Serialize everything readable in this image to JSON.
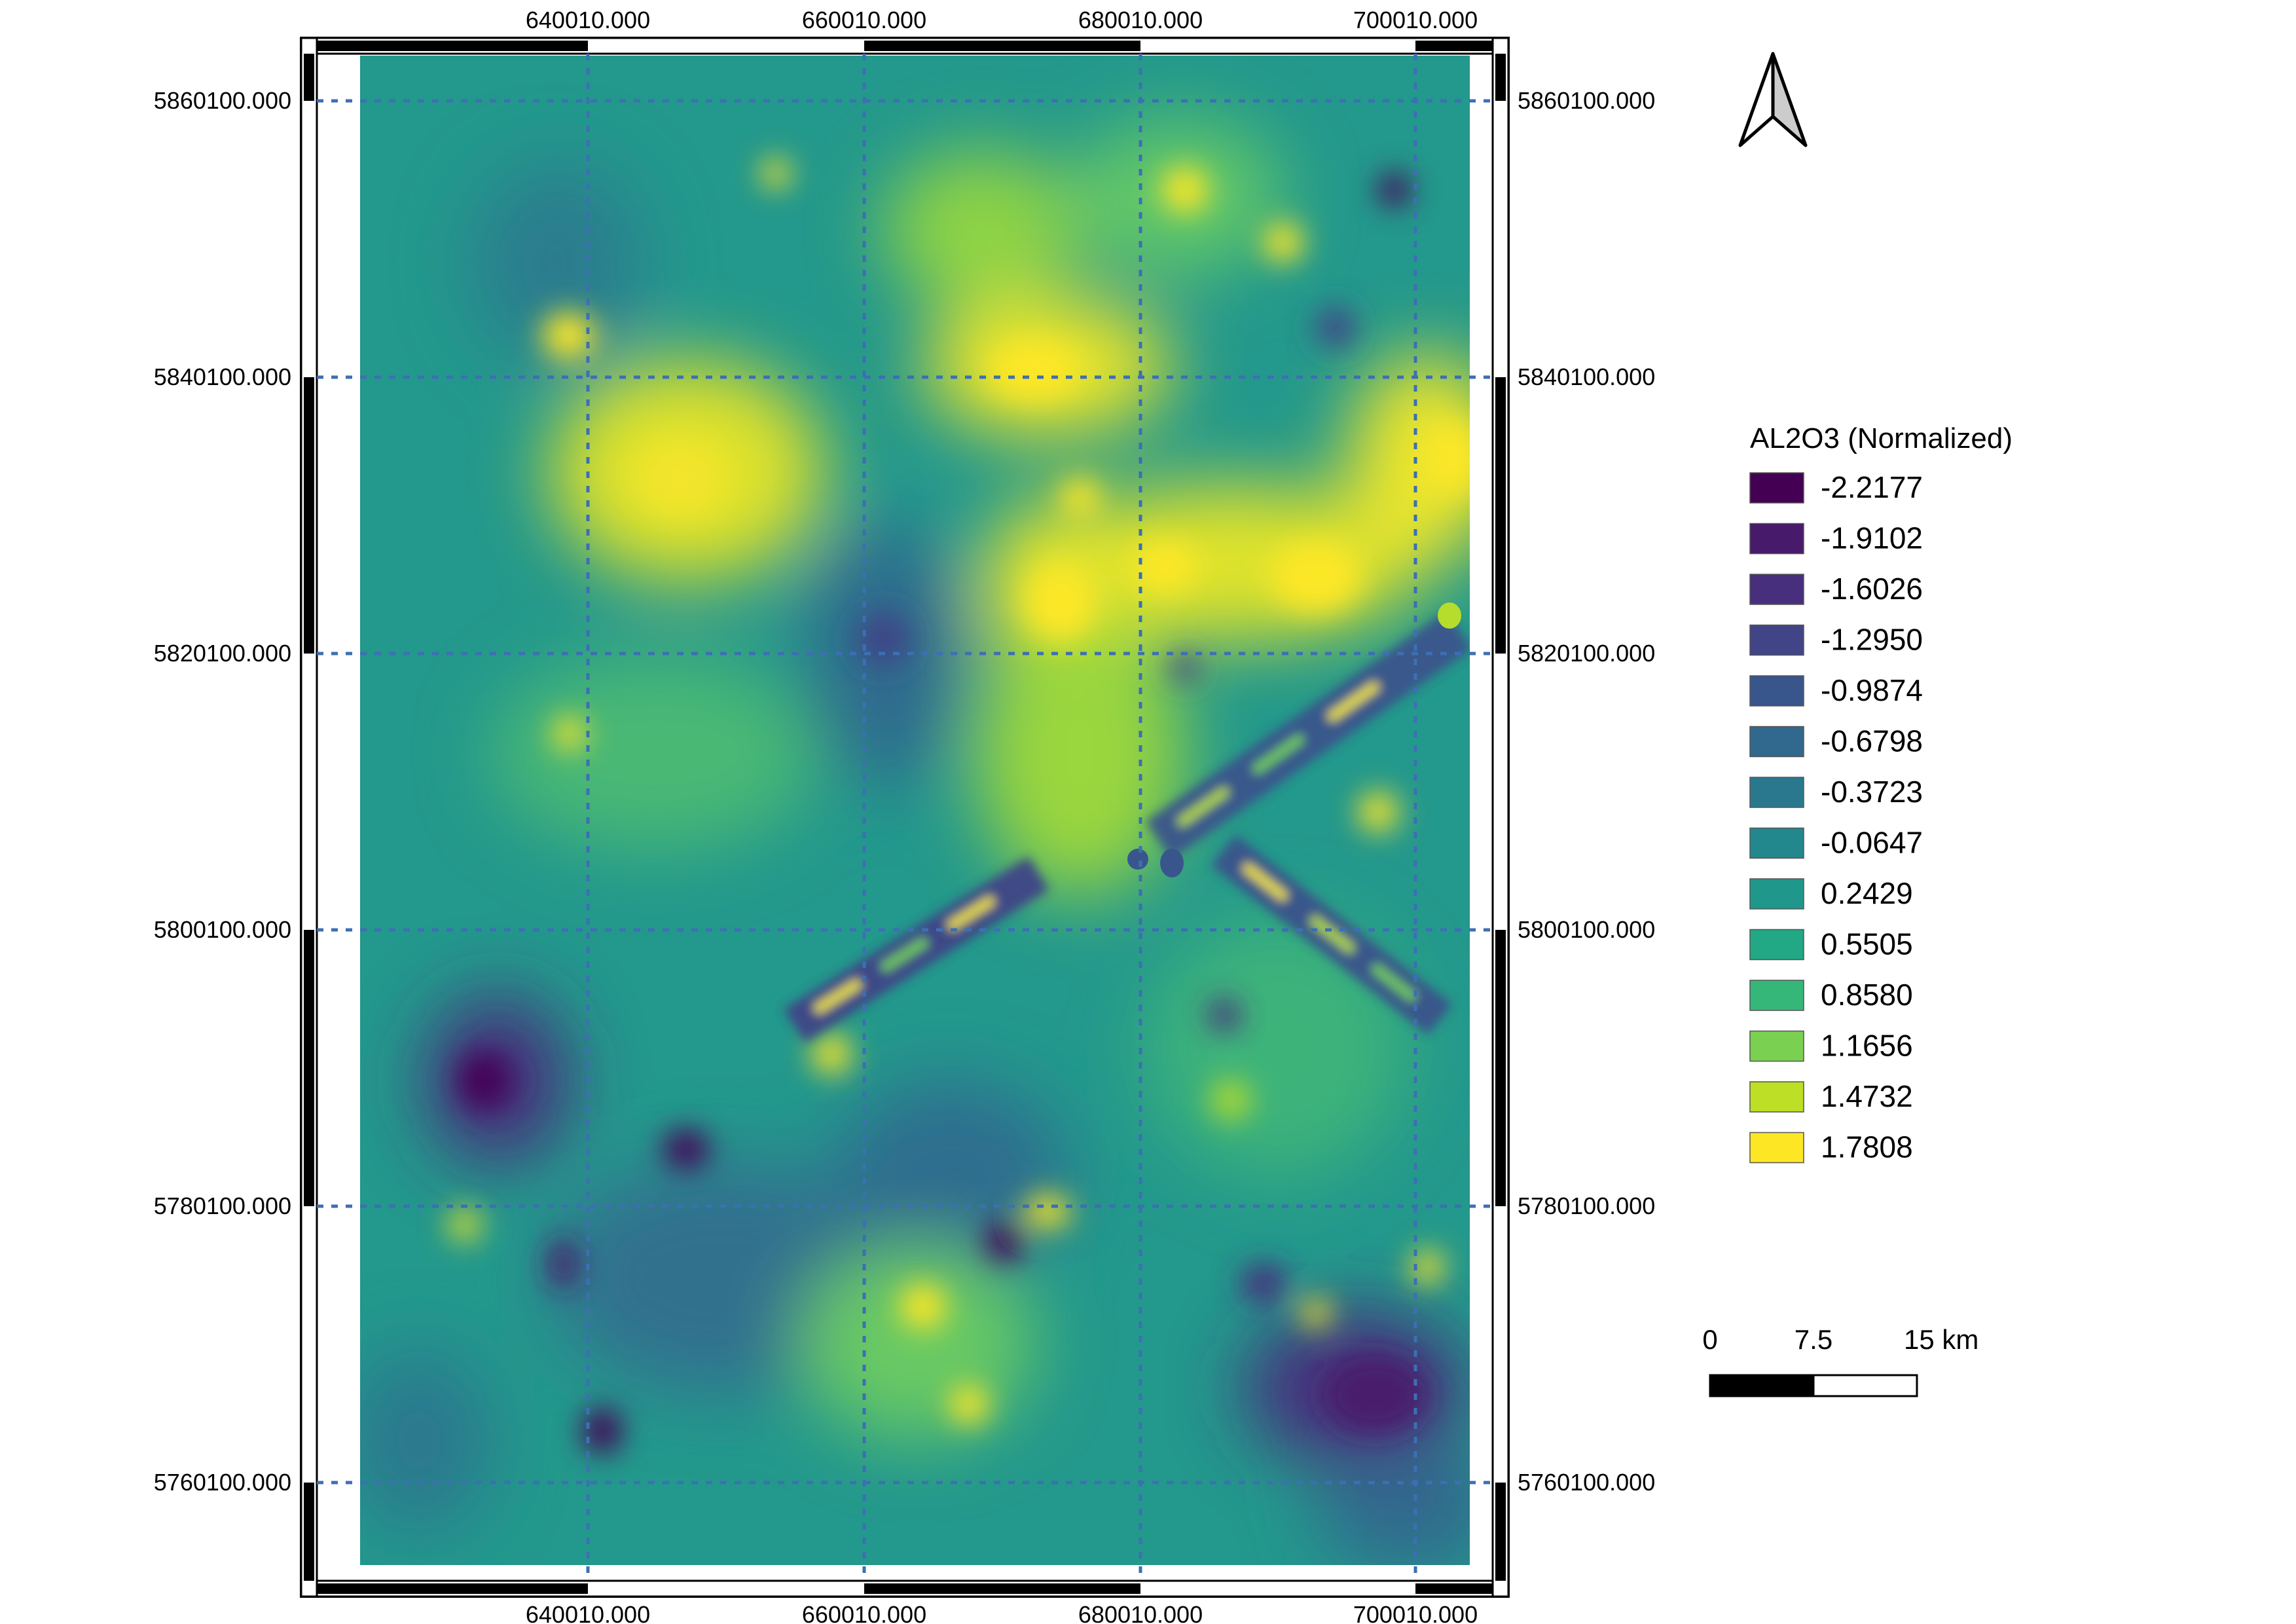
{
  "map": {
    "x_ticks": [
      "640010.000",
      "660010.000",
      "680010.000",
      "700010.000"
    ],
    "y_ticks": [
      "5860100.000",
      "5840100.000",
      "5820100.000",
      "5800100.000",
      "5780100.000",
      "5760100.000"
    ],
    "grid_line_color": "#3d6fb3",
    "raster_description": "continuous interpolated surface"
  },
  "legend": {
    "title": "AL2O3 (Normalized)",
    "items": [
      {
        "label": "-2.2177",
        "color": "#440154"
      },
      {
        "label": "-1.9102",
        "color": "#481a6c"
      },
      {
        "label": "-1.6026",
        "color": "#472f7d"
      },
      {
        "label": "-1.2950",
        "color": "#414487"
      },
      {
        "label": "-0.9874",
        "color": "#39568c"
      },
      {
        "label": "-0.6798",
        "color": "#31688e"
      },
      {
        "label": "-0.3723",
        "color": "#2a788e"
      },
      {
        "label": "-0.0647",
        "color": "#23888e"
      },
      {
        "label": "0.2429",
        "color": "#1f988b"
      },
      {
        "label": "0.5505",
        "color": "#22a884"
      },
      {
        "label": "0.8580",
        "color": "#35b779"
      },
      {
        "label": "1.1656",
        "color": "#7ad151"
      },
      {
        "label": "1.4732",
        "color": "#bddf26"
      },
      {
        "label": "1.7808",
        "color": "#fde725"
      }
    ]
  },
  "scalebar": {
    "labels": [
      "0",
      "7.5",
      "15 km"
    ]
  },
  "north_arrow": {
    "icon": "north-arrow-icon"
  }
}
